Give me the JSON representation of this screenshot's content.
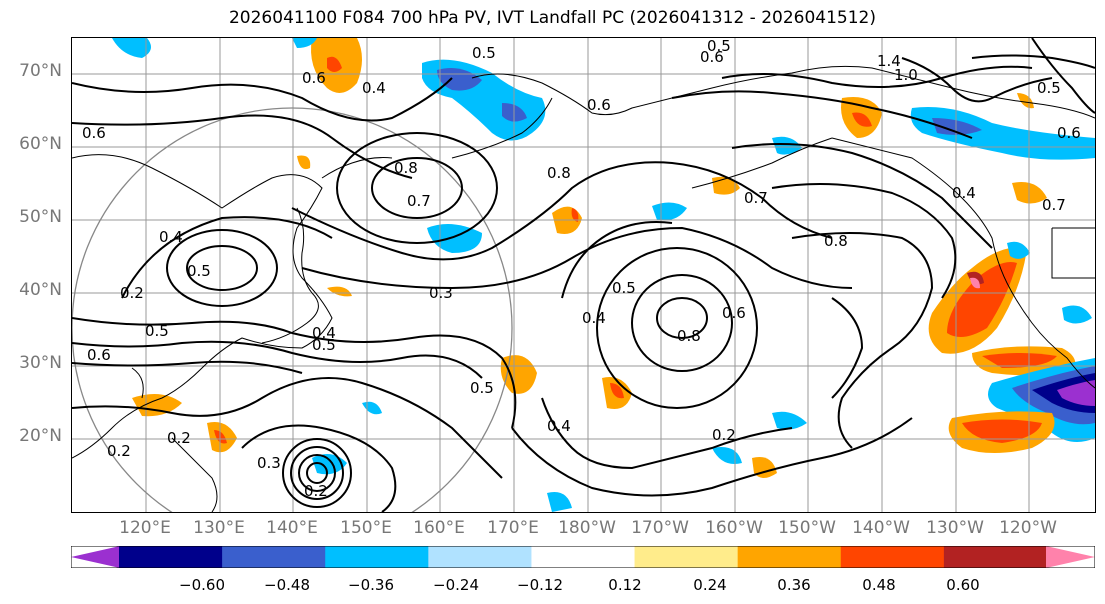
{
  "title": "2026041100 F084 700 hPa PV, IVT Landfall PC (2026041312 - 2026041512)",
  "lat_labels": [
    "70°N",
    "60°N",
    "50°N",
    "40°N",
    "30°N",
    "20°N"
  ],
  "lon_labels": [
    "120°E",
    "130°E",
    "140°E",
    "150°E",
    "160°E",
    "170°E",
    "180°W",
    "170°W",
    "160°W",
    "150°W",
    "140°W",
    "130°W",
    "120°W"
  ],
  "colorbar": {
    "colors": [
      "#9b30d0",
      "#00008b",
      "#3a5fcd",
      "#00bfff",
      "#b0e2ff",
      "#ffffff",
      "#ffec8b",
      "#ffa500",
      "#ff4500",
      "#b22222",
      "#ff82ab"
    ],
    "tick_labels": [
      "−0.60",
      "−0.48",
      "−0.36",
      "−0.24",
      "−0.12",
      "0.12",
      "0.24",
      "0.36",
      "0.48",
      "0.60"
    ]
  },
  "contour_labels": [
    "0.5",
    "0.6",
    "1.4",
    "1.0",
    "0.4",
    "0.5",
    "0.6",
    "0.6",
    "0.8",
    "0.7",
    "0.8",
    "0.7",
    "0.8",
    "0.4",
    "0.5",
    "0.2",
    "0.3",
    "0.4",
    "0.5",
    "0.6",
    "0.5",
    "0.4",
    "0.5",
    "0.8",
    "0.6",
    "0.5",
    "0.4",
    "0.2",
    "0.2",
    "0.2",
    "0.3",
    "0.2",
    "0.6",
    "0.5",
    "0.4",
    "0.6",
    "0.7"
  ]
}
